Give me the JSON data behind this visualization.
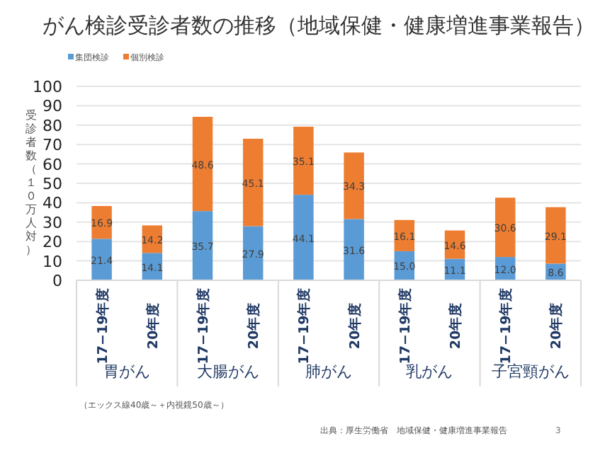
{
  "chart_data": {
    "type": "bar",
    "title": "がん検診受診者数の推移（地域保健・健康増進事業報告）",
    "ylabel": "受診者数（１０万人対）",
    "categories": [
      "17−19年度",
      "20年度",
      "17−19年度",
      "20年度",
      "17−19年度",
      "20年度",
      "17−19年度",
      "20年度",
      "17−19年度",
      "20年度"
    ],
    "series": [
      {
        "name": "集団検診",
        "color": "#5b9bd5",
        "values": [
          21.4,
          14.1,
          35.7,
          27.9,
          44.1,
          31.6,
          15.0,
          11.1,
          12.0,
          8.6
        ],
        "value_labels": [
          "21.4",
          "14.1",
          "35.7",
          "27.9",
          "44.1",
          "31.6",
          "15.0",
          "11.1",
          "12.0",
          "8.6"
        ]
      },
      {
        "name": "個別検診",
        "color": "#ed7d31",
        "values": [
          16.9,
          14.2,
          48.6,
          45.1,
          35.1,
          34.3,
          16.1,
          14.6,
          30.6,
          29.1
        ],
        "value_labels": [
          "16.9",
          "14.2",
          "48.6",
          "45.1",
          "35.1",
          "34.3",
          "16.1",
          "14.6",
          "30.6",
          "29.1"
        ]
      }
    ],
    "stacked": true,
    "ylim": [
      0,
      100
    ],
    "yticks": [
      0,
      10,
      20,
      30,
      40,
      50,
      60,
      70,
      80,
      90,
      100
    ],
    "grid": "y",
    "legend": "top left",
    "annotations": [
      "胃がん",
      "大腸がん",
      "肺がん",
      "乳がん",
      "子宮頸がん",
      "（エックス線40歳～＋内視鏡50歳～）",
      "出典：厚生労働省　地域保健・健康増進事業報告",
      "3"
    ]
  }
}
